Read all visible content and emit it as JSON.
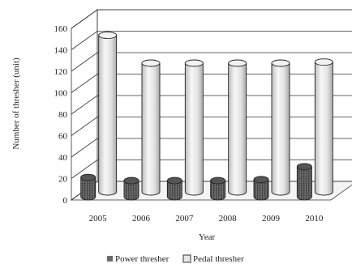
{
  "chart_data": {
    "type": "bar",
    "subtype": "3d-cylinder",
    "categories": [
      "2005",
      "2006",
      "2007",
      "2008",
      "2009",
      "2010"
    ],
    "series": [
      {
        "name": "Power thresher",
        "values": [
          18,
          15,
          15,
          15,
          16,
          28
        ],
        "color": "#6b6b6b"
      },
      {
        "name": "Pedal thresher",
        "values": [
          146,
          120,
          120,
          120,
          120,
          121
        ],
        "color": "#e6e6e6"
      }
    ],
    "xlabel": "Year",
    "ylabel": "Number of thresher (unit)",
    "ylim": [
      0,
      160
    ],
    "yticks": [
      "0",
      "20",
      "40",
      "60",
      "80",
      "100",
      "120",
      "140",
      "160"
    ],
    "grid": true,
    "legend_position": "bottom"
  }
}
